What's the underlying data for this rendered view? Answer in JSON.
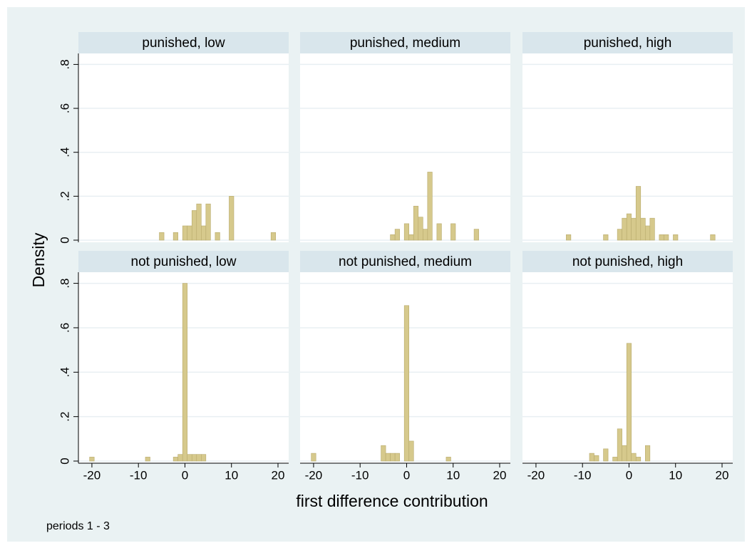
{
  "chart_data": [
    {
      "type": "histogram",
      "title": "punished, low",
      "color": "#d6c98c",
      "bins": [
        -5.5,
        -4.5,
        -3.5,
        -2.5,
        -1.5,
        -0.5,
        0.5,
        1.5,
        2.5,
        3.5,
        4.5,
        5.5,
        6.5,
        7.5,
        8.5,
        9.5,
        10.5,
        11.5,
        12.5,
        13.5,
        14.5,
        15.5,
        16.5,
        17.5,
        18.5,
        19.5
      ],
      "values": [
        0.035,
        0,
        0,
        0.035,
        0,
        0.065,
        0.065,
        0.135,
        0.165,
        0.065,
        0.165,
        0,
        0.035,
        0,
        0,
        0.2,
        0,
        0,
        0,
        0,
        0,
        0,
        0,
        0,
        0.035
      ],
      "xlim": [
        -22.9,
        22.3
      ],
      "ylim": [
        0,
        0.85
      ],
      "yticks": [
        0,
        {
          "value": 0.2,
          "label": ".2"
        },
        {
          "value": 0.4,
          "label": ".4"
        },
        {
          "value": 0.6,
          "label": ".6"
        },
        {
          "value": 0.8,
          "label": ".8"
        }
      ],
      "grid": true
    },
    {
      "type": "histogram",
      "title": "punished, medium",
      "color": "#d6c98c",
      "bins": [
        -3.5,
        -2.5,
        -1.5,
        -0.5,
        0.5,
        1.5,
        2.5,
        3.5,
        4.5,
        5.5,
        6.5,
        7.5,
        8.5,
        9.5,
        10.5,
        11.5,
        12.5,
        13.5,
        14.5,
        15.5
      ],
      "values": [
        0.025,
        0.05,
        0,
        0.075,
        0.025,
        0.155,
        0.105,
        0.05,
        0.31,
        0,
        0.075,
        0,
        0,
        0.075,
        0,
        0,
        0,
        0,
        0.05
      ],
      "xlim": [
        -22.9,
        22.3
      ],
      "ylim": [
        0,
        0.85
      ],
      "yticks": [
        0,
        0.2,
        0.4,
        0.6,
        0.8
      ],
      "grid": true
    },
    {
      "type": "histogram",
      "title": "punished, high",
      "color": "#d6c98c",
      "bins": [
        -13.5,
        -12.5,
        -11.5,
        -10.5,
        -9.5,
        -8.5,
        -7.5,
        -6.5,
        -5.5,
        -4.5,
        -3.5,
        -2.5,
        -1.5,
        -0.5,
        0.5,
        1.5,
        2.5,
        3.5,
        4.5,
        5.5,
        6.5,
        7.5,
        8.5,
        9.5,
        10.5,
        11.5,
        12.5,
        13.5,
        14.5,
        15.5,
        16.5,
        17.5,
        18.5
      ],
      "values": [
        0.025,
        0,
        0,
        0,
        0,
        0,
        0,
        0,
        0.025,
        0,
        0,
        0.05,
        0.1,
        0.12,
        0.1,
        0.245,
        0.1,
        0.065,
        0.1,
        0,
        0.025,
        0.025,
        0,
        0.025,
        0,
        0,
        0,
        0,
        0,
        0,
        0,
        0.025
      ],
      "xlim": [
        -22.9,
        22.3
      ],
      "ylim": [
        0,
        0.85
      ],
      "yticks": [
        0,
        0.2,
        0.4,
        0.6,
        0.8
      ],
      "grid": true
    },
    {
      "type": "histogram",
      "title": "not punished, low",
      "color": "#d6c98c",
      "bins": [
        -20.5,
        -19.5,
        -18.5,
        -17.5,
        -16.5,
        -15.5,
        -14.5,
        -13.5,
        -12.5,
        -11.5,
        -10.5,
        -9.5,
        -8.5,
        -7.5,
        -6.5,
        -5.5,
        -4.5,
        -3.5,
        -2.5,
        -1.5,
        -0.5,
        0.5,
        1.5,
        2.5,
        3.5,
        4.5
      ],
      "values": [
        0.018,
        0,
        0,
        0,
        0,
        0,
        0,
        0,
        0,
        0,
        0,
        0,
        0.018,
        0,
        0,
        0,
        0,
        0,
        0.018,
        0.03,
        0.8,
        0.03,
        0.03,
        0.03,
        0.03
      ],
      "xlim": [
        -22.9,
        22.3
      ],
      "ylim": [
        0,
        0.85
      ],
      "xticks": [
        -20,
        -10,
        0,
        10,
        20
      ],
      "yticks": [
        0,
        {
          "value": 0.2,
          "label": ".2"
        },
        {
          "value": 0.4,
          "label": ".4"
        },
        {
          "value": 0.6,
          "label": ".6"
        },
        {
          "value": 0.8,
          "label": ".8"
        }
      ],
      "grid": true
    },
    {
      "type": "histogram",
      "title": "not punished, medium",
      "color": "#d6c98c",
      "bins": [
        -20.5,
        -19.5,
        -18.5,
        -17.5,
        -16.5,
        -15.5,
        -14.5,
        -13.5,
        -12.5,
        -11.5,
        -10.5,
        -9.5,
        -8.5,
        -7.5,
        -6.5,
        -5.5,
        -4.5,
        -3.5,
        -2.5,
        -1.5,
        -0.5,
        0.5,
        1.5,
        2.5,
        3.5,
        4.5,
        5.5,
        6.5,
        7.5,
        8.5,
        9.5
      ],
      "values": [
        0.035,
        0,
        0,
        0,
        0,
        0,
        0,
        0,
        0,
        0,
        0,
        0,
        0,
        0,
        0,
        0.07,
        0.035,
        0.035,
        0.035,
        0,
        0.7,
        0.09,
        0,
        0,
        0,
        0,
        0,
        0,
        0,
        0.018
      ],
      "xlim": [
        -22.9,
        22.3
      ],
      "ylim": [
        0,
        0.85
      ],
      "xticks": [
        -20,
        -10,
        0,
        10,
        20
      ],
      "yticks": [
        0,
        0.2,
        0.4,
        0.6,
        0.8
      ],
      "grid": true
    },
    {
      "type": "histogram",
      "title": "not punished, high",
      "color": "#d6c98c",
      "bins": [
        -8.5,
        -7.5,
        -6.5,
        -5.5,
        -4.5,
        -3.5,
        -2.5,
        -1.5,
        -0.5,
        0.5,
        1.5,
        2.5,
        3.5,
        4.5
      ],
      "values": [
        0.035,
        0.025,
        0,
        0.055,
        0,
        0.018,
        0.145,
        0.07,
        0.53,
        0.035,
        0.018,
        0,
        0.07
      ],
      "xlim": [
        -22.9,
        22.3
      ],
      "ylim": [
        0,
        0.85
      ],
      "xticks": [
        -20,
        -10,
        0,
        10,
        20
      ],
      "yticks": [
        0,
        0.2,
        0.4,
        0.6,
        0.8
      ],
      "grid": true
    }
  ],
  "ylabel": "Density",
  "xlabel": "first difference contribution",
  "note": "periods 1 - 3"
}
